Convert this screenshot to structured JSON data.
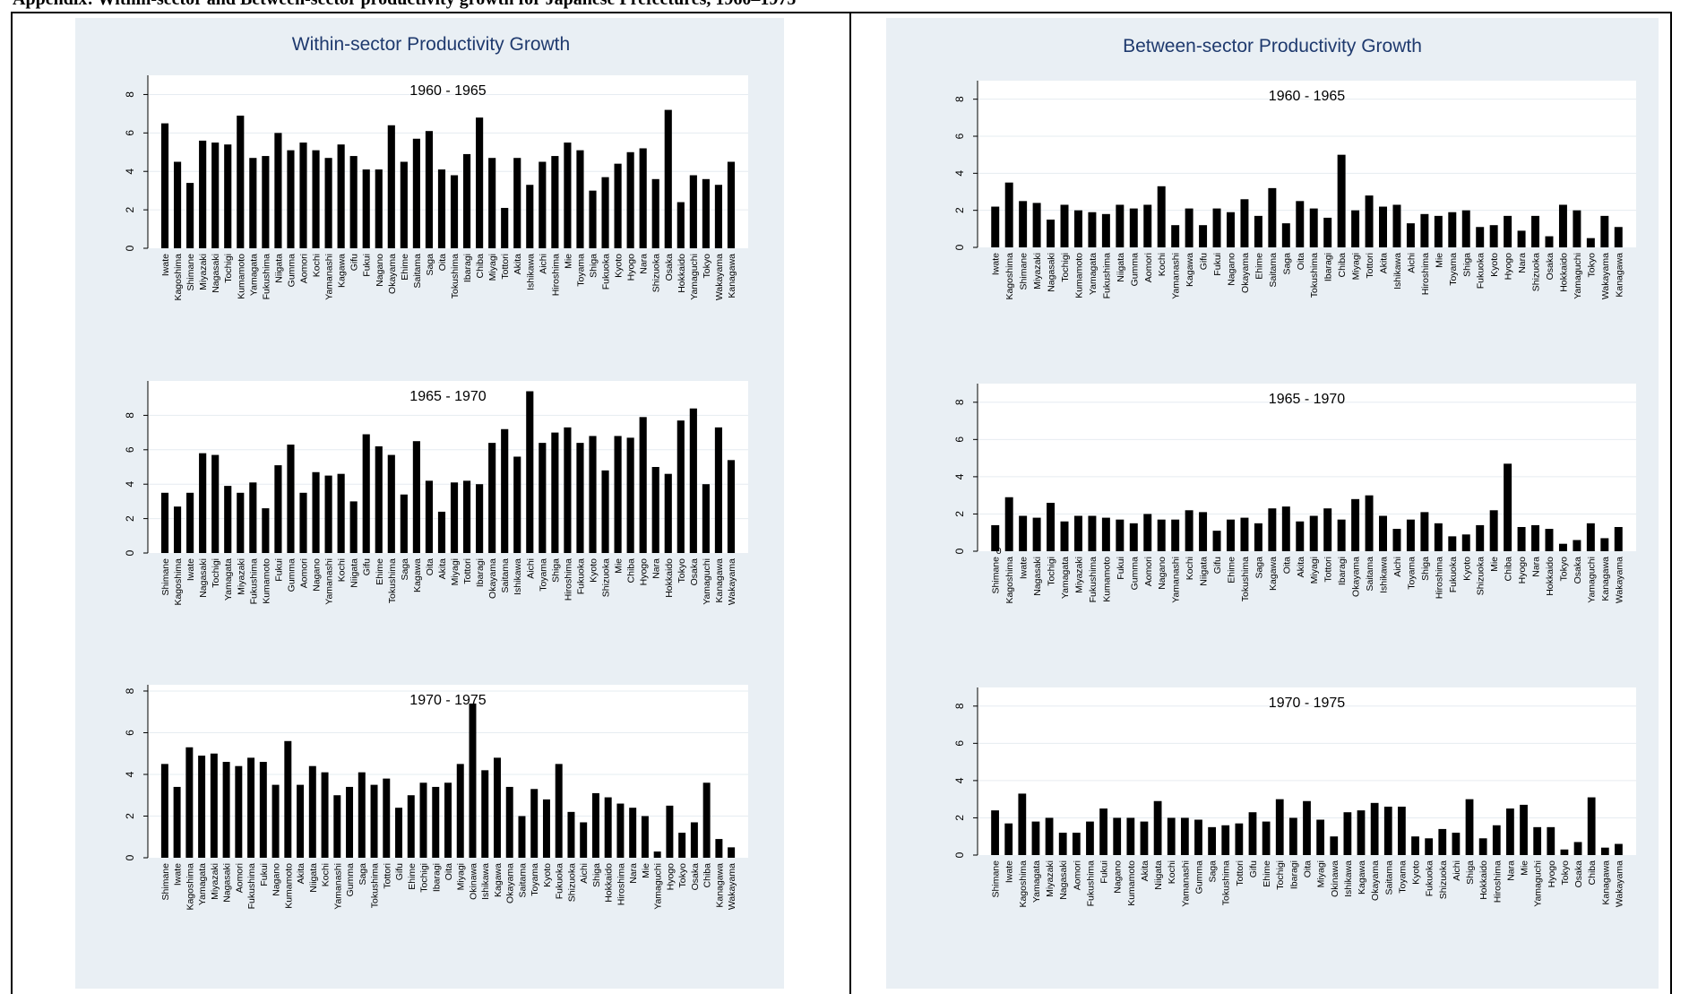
{
  "header_text": {
    "left": "Appendix: Within-sector and Between-sector productivity growth for Japanese Prefectures, 1960–1975",
    "right": ""
  },
  "chart_data": [
    {
      "type": "bar",
      "panel": "left",
      "title": "Within-sector Productivity Growth",
      "subplots": [
        {
          "subtitle": "1960 - 1965",
          "ylim": [
            0,
            9
          ],
          "yticks": [
            0,
            2,
            4,
            6,
            8
          ],
          "categories": [
            "Iwate",
            "Kagoshima",
            "Shimane",
            "Miyazaki",
            "Nagasaki",
            "Tochigi",
            "Kumamoto",
            "Yamagata",
            "Fukushima",
            "Niigata",
            "Gumma",
            "Aomori",
            "Kochi",
            "Yamanashi",
            "Kagawa",
            "Gifu",
            "Fukui",
            "Nagano",
            "Okayama",
            "Ehime",
            "Saitama",
            "Saga",
            "Oita",
            "Tokushima",
            "Ibaragi",
            "Chiba",
            "Miyagi",
            "Tottori",
            "Akita",
            "Ishikawa",
            "Aichi",
            "Hiroshima",
            "Mie",
            "Toyama",
            "Shiga",
            "Fukuoka",
            "Kyoto",
            "Hyogo",
            "Nara",
            "Shizuoka",
            "Osaka",
            "Hokkaido",
            "Yamaguchi",
            "Tokyo",
            "Wakayama",
            "Kanagawa"
          ],
          "values": [
            6.5,
            4.5,
            3.4,
            5.6,
            5.5,
            5.4,
            6.9,
            4.7,
            4.8,
            6.0,
            5.1,
            5.5,
            5.1,
            4.7,
            5.4,
            4.8,
            4.1,
            4.1,
            6.4,
            4.5,
            5.7,
            6.1,
            4.1,
            3.8,
            4.9,
            6.8,
            4.7,
            2.1,
            4.7,
            3.3,
            4.5,
            4.8,
            5.5,
            5.1,
            3.0,
            3.7,
            4.4,
            5.0,
            5.2,
            3.6,
            7.2,
            2.4,
            3.8,
            3.6,
            3.3,
            4.5
          ]
        },
        {
          "subtitle": "1965 - 1970",
          "ylim": [
            0,
            10
          ],
          "yticks": [
            0,
            2,
            4,
            6,
            8
          ],
          "categories": [
            "Shimane",
            "Kagoshima",
            "Iwate",
            "Nagasaki",
            "Tochigi",
            "Yamagata",
            "Miyazaki",
            "Fukushima",
            "Kumamoto",
            "Fukui",
            "Gumma",
            "Aomori",
            "Nagano",
            "Yamanashi",
            "Kochi",
            "Niigata",
            "Gifu",
            "Ehime",
            "Tokushima",
            "Saga",
            "Kagawa",
            "Oita",
            "Akita",
            "Miyagi",
            "Tottori",
            "Ibaragi",
            "Okayama",
            "Saitama",
            "Ishikawa",
            "Aichi",
            "Toyama",
            "Shiga",
            "Hiroshima",
            "Fukuoka",
            "Kyoto",
            "Shizuoka",
            "Mie",
            "Chiba",
            "Hyogo",
            "Nara",
            "Hokkaido",
            "Tokyo",
            "Osaka",
            "Yamaguchi",
            "Kanagawa",
            "Wakayama"
          ],
          "values": [
            3.5,
            2.7,
            3.5,
            5.8,
            5.7,
            3.9,
            3.5,
            4.1,
            2.6,
            5.1,
            6.3,
            3.5,
            4.7,
            4.5,
            4.6,
            3.0,
            6.9,
            6.2,
            5.7,
            3.4,
            6.5,
            4.2,
            2.4,
            4.1,
            4.2,
            4.0,
            6.4,
            7.2,
            5.6,
            9.4,
            6.4,
            7.0,
            7.3,
            6.4,
            6.8,
            4.8,
            6.8,
            6.7,
            7.9,
            5.0,
            4.6,
            7.7,
            8.4,
            4.0,
            7.3,
            5.4
          ]
        },
        {
          "subtitle": "1970 - 1975",
          "ylim": [
            0,
            8.3
          ],
          "yticks": [
            0,
            2,
            4,
            6,
            8
          ],
          "categories": [
            "Shimane",
            "Iwate",
            "Kagoshima",
            "Yamagata",
            "Miyazaki",
            "Nagasaki",
            "Aomori",
            "Fukushima",
            "Fukui",
            "Nagano",
            "Kumamoto",
            "Akita",
            "Niigata",
            "Kochi",
            "Yamanashi",
            "Gumma",
            "Saga",
            "Tokushima",
            "Tottori",
            "Gifu",
            "Ehime",
            "Tochigi",
            "Ibaragi",
            "Oita",
            "Miyagi",
            "Okinawa",
            "Ishikawa",
            "Kagawa",
            "Okayama",
            "Saitama",
            "Toyama",
            "Kyoto",
            "Fukuoka",
            "Shizuoka",
            "Aichi",
            "Shiga",
            "Hokkaido",
            "Hiroshima",
            "Nara",
            "Mie",
            "Yamaguchi",
            "Hyogo",
            "Tokyo",
            "Osaka",
            "Chiba",
            "Kanagawa",
            "Wakayama"
          ],
          "values": [
            4.5,
            3.4,
            5.3,
            4.9,
            5.0,
            4.6,
            4.4,
            4.8,
            4.6,
            3.5,
            5.6,
            3.5,
            4.4,
            4.1,
            3.0,
            3.4,
            4.1,
            3.5,
            3.8,
            2.4,
            3.0,
            3.6,
            3.4,
            3.6,
            4.5,
            7.4,
            4.2,
            4.8,
            3.4,
            2.0,
            3.3,
            2.8,
            4.5,
            2.2,
            1.7,
            3.1,
            2.9,
            2.6,
            2.4,
            2.0,
            0.3,
            2.5,
            1.2,
            1.7,
            3.6,
            0.9,
            0.5
          ]
        }
      ]
    },
    {
      "type": "bar",
      "panel": "right",
      "title": "Between-sector Productivity Growth",
      "subplots": [
        {
          "subtitle": "1960 - 1965",
          "ylim": [
            0,
            9
          ],
          "yticks": [
            0,
            2,
            4,
            6,
            8
          ],
          "categories": [
            "Iwate",
            "Kagoshima",
            "Shimane",
            "Miyazaki",
            "Nagasaki",
            "Tochigi",
            "Kumamoto",
            "Yamagata",
            "Fukushima",
            "Niigata",
            "Gumma",
            "Aomori",
            "Kochi",
            "Yamanashi",
            "Kagawa",
            "Gifu",
            "Fukui",
            "Nagano",
            "Okayama",
            "Ehime",
            "Saitama",
            "Saga",
            "Oita",
            "Tokushima",
            "Ibaragi",
            "Chiba",
            "Miyagi",
            "Tottori",
            "Akita",
            "Ishikawa",
            "Aichi",
            "Hiroshima",
            "Mie",
            "Toyama",
            "Shiga",
            "Fukuoka",
            "Kyoto",
            "Hyogo",
            "Nara",
            "Shizuoka",
            "Osaka",
            "Hokkaido",
            "Yamaguchi",
            "Tokyo",
            "Wakayama",
            "Kanagawa"
          ],
          "values": [
            2.2,
            3.5,
            2.5,
            2.4,
            1.5,
            2.3,
            2.0,
            1.9,
            1.8,
            2.3,
            2.1,
            2.3,
            3.3,
            1.2,
            2.1,
            1.2,
            2.1,
            1.9,
            2.6,
            1.7,
            3.2,
            1.3,
            2.5,
            2.1,
            1.6,
            5.0,
            2.0,
            2.8,
            2.2,
            2.3,
            1.3,
            1.8,
            1.7,
            1.9,
            2.0,
            1.1,
            1.2,
            1.7,
            0.9,
            1.7,
            0.6,
            2.3,
            2.0,
            0.5,
            1.7,
            1.1
          ]
        },
        {
          "subtitle": "1965 - 1970",
          "ylim": [
            0,
            9
          ],
          "yticks": [
            0,
            2,
            4,
            6,
            8
          ],
          "zero_label": "0",
          "categories": [
            "Shimane",
            "Kagoshima",
            "Iwate",
            "Nagasaki",
            "Tochigi",
            "Yamagata",
            "Miyazaki",
            "Fukushima",
            "Kumamoto",
            "Fukui",
            "Gumma",
            "Aomori",
            "Nagano",
            "Yamanashi",
            "Kochi",
            "Niigata",
            "Gifu",
            "Ehime",
            "Tokushima",
            "Saga",
            "Kagawa",
            "Oita",
            "Akita",
            "Miyagi",
            "Tottori",
            "Ibaragi",
            "Okayama",
            "Saitama",
            "Ishikawa",
            "Aichi",
            "Toyama",
            "Shiga",
            "Hiroshima",
            "Fukuoka",
            "Kyoto",
            "Shizuoka",
            "Mie",
            "Chiba",
            "Hyogo",
            "Nara",
            "Hokkaido",
            "Tokyo",
            "Osaka",
            "Yamaguchi",
            "Kanagawa",
            "Wakayama"
          ],
          "values": [
            1.4,
            2.9,
            1.9,
            1.8,
            2.6,
            1.6,
            1.9,
            1.9,
            1.8,
            1.7,
            1.5,
            2.0,
            1.7,
            1.7,
            2.2,
            2.1,
            1.1,
            1.7,
            1.8,
            1.5,
            2.3,
            2.4,
            1.6,
            1.9,
            2.3,
            1.7,
            2.8,
            3.0,
            1.9,
            1.2,
            1.7,
            2.1,
            1.5,
            0.8,
            0.9,
            1.4,
            2.2,
            4.7,
            1.3,
            1.4,
            1.2,
            0.4,
            0.6,
            1.5,
            0.7,
            1.3
          ]
        },
        {
          "subtitle": "1970 - 1975",
          "ylim": [
            0,
            9
          ],
          "yticks": [
            0,
            2,
            4,
            6,
            8
          ],
          "categories": [
            "Shimane",
            "Iwate",
            "Kagoshima",
            "Yamagata",
            "Miyazaki",
            "Nagasaki",
            "Aomori",
            "Fukushima",
            "Fukui",
            "Nagano",
            "Kumamoto",
            "Akita",
            "Niigata",
            "Kochi",
            "Yamanashi",
            "Gumma",
            "Saga",
            "Tokushima",
            "Tottori",
            "Gifu",
            "Ehime",
            "Tochigi",
            "Ibaragi",
            "Oita",
            "Miyagi",
            "Okinawa",
            "Ishikawa",
            "Kagawa",
            "Okayama",
            "Saitama",
            "Toyama",
            "Kyoto",
            "Fukuoka",
            "Shizuoka",
            "Aichi",
            "Shiga",
            "Hokkaido",
            "Hiroshima",
            "Nara",
            "Mie",
            "Yamaguchi",
            "Hyogo",
            "Tokyo",
            "Osaka",
            "Chiba",
            "Kanagawa",
            "Wakayama"
          ],
          "values": [
            2.4,
            1.7,
            3.3,
            1.8,
            2.0,
            1.2,
            1.2,
            1.8,
            2.5,
            2.0,
            2.0,
            1.8,
            2.9,
            2.0,
            2.0,
            1.9,
            1.5,
            1.6,
            1.7,
            2.3,
            1.8,
            3.0,
            2.0,
            2.9,
            1.9,
            1.0,
            2.3,
            2.4,
            2.8,
            2.6,
            2.6,
            1.0,
            0.9,
            1.4,
            1.2,
            3.0,
            0.9,
            1.6,
            2.5,
            2.7,
            1.5,
            1.5,
            0.3,
            0.7,
            3.1,
            0.4,
            0.6
          ]
        }
      ]
    }
  ]
}
